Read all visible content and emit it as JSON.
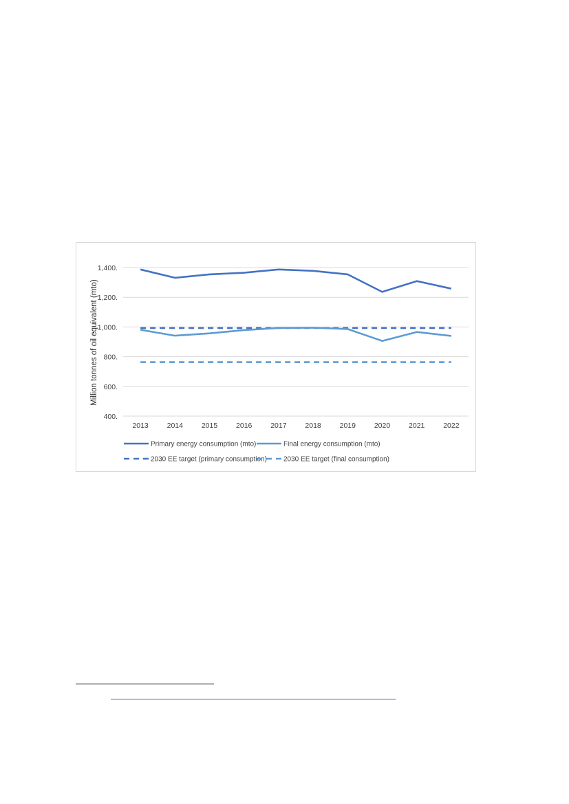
{
  "chart_data": {
    "type": "line",
    "x": [
      "2013",
      "2014",
      "2015",
      "2016",
      "2017",
      "2018",
      "2019",
      "2020",
      "2021",
      "2022"
    ],
    "ylabel": "Million tonnes of oil equivalent (mto)",
    "ylim": [
      400,
      1400
    ],
    "yticks": [
      {
        "value": 400,
        "label": "400."
      },
      {
        "value": 600,
        "label": "600."
      },
      {
        "value": 800,
        "label": "800."
      },
      {
        "value": 1000,
        "label": "1,000."
      },
      {
        "value": 1200,
        "label": "1,200."
      },
      {
        "value": 1400,
        "label": "1,400."
      }
    ],
    "grid": "horizontal",
    "legend_position": "bottom",
    "series": [
      {
        "name": "Primary energy consumption (mto)",
        "style": "solid",
        "color": "#4472c4",
        "values": [
          1387,
          1331,
          1354,
          1365,
          1387,
          1378,
          1354,
          1236,
          1309,
          1258
        ]
      },
      {
        "name": "Final energy consumption (mto)",
        "style": "solid",
        "color": "#5b9bd5",
        "values": [
          981,
          941,
          957,
          979,
          993,
          995,
          986,
          906,
          966,
          940
        ]
      },
      {
        "name": "2030 EE target (primary consumption)",
        "style": "dashed",
        "color": "#4472c4",
        "values": [
          993,
          993,
          993,
          993,
          993,
          993,
          993,
          993,
          993,
          993
        ]
      },
      {
        "name": "2030 EE target (final consumption)",
        "style": "dashed",
        "color": "#5b9bd5",
        "values": [
          763,
          763,
          763,
          763,
          763,
          763,
          763,
          763,
          763,
          763
        ]
      }
    ]
  }
}
